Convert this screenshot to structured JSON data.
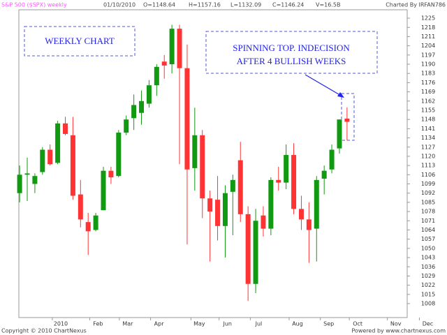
{
  "chart_data": {
    "type": "candlestick",
    "header": {
      "symbol": "S&P 500 ($SPX) weekly",
      "date": "01/10/2010",
      "open": "O=1148.64",
      "high": "H=1157.16",
      "low": "L=1132.09",
      "close": "C=1146.24",
      "volume": "V=16.5B",
      "credit": "Charted By IRFAN786"
    },
    "footer": {
      "copyright": "Copyright © 2010 ChartNexus",
      "powered": "Powered by www.chartnexus.com"
    },
    "annotations": {
      "box1": "WEEKLY CHART",
      "box2_line1": "SPINNING TOP. INDECISION",
      "box2_line2": "AFTER 4 BULLISH WEEKS"
    },
    "up_color": "#119911",
    "down_color": "#ff3333",
    "x": [
      0,
      1,
      2,
      3,
      4,
      5,
      6,
      7,
      8,
      9,
      10,
      11,
      12,
      13,
      14,
      15,
      16,
      17,
      18,
      19,
      20,
      21,
      22,
      23,
      24,
      25,
      26,
      27,
      28,
      29,
      30,
      31,
      32,
      33,
      34,
      35,
      36,
      37,
      38,
      39,
      40,
      41,
      42,
      43
    ],
    "open": [
      1092,
      1106,
      1099,
      1108,
      1125,
      1115,
      1145,
      1136,
      1091,
      1070,
      1064,
      1079,
      1109,
      1105,
      1138,
      1149,
      1153,
      1160,
      1174,
      1192,
      1190,
      1217,
      1187,
      1111,
      1136,
      1088,
      1087,
      1067,
      1093,
      1117,
      1076,
      1023,
      1075,
      1065,
      1102,
      1100,
      1121,
      1080,
      1072,
      1065,
      1103,
      1110,
      1126,
      1148.64
    ],
    "high": [
      1113,
      1119,
      1107,
      1127,
      1129,
      1147,
      1150,
      1150,
      1102,
      1077,
      1077,
      1112,
      1112,
      1140,
      1151,
      1167,
      1170,
      1178,
      1190,
      1197,
      1220,
      1220,
      1205,
      1157,
      1140,
      1094,
      1105,
      1098,
      1106,
      1131,
      1082,
      1080,
      1082,
      1104,
      1112,
      1129,
      1130,
      1090,
      1085,
      1105,
      1113,
      1129,
      1148,
      1157.16
    ],
    "low": [
      1085,
      1086,
      1092,
      1106,
      1113,
      1114,
      1136,
      1087,
      1066,
      1045,
      1063,
      1079,
      1099,
      1104,
      1136,
      1140,
      1144,
      1157,
      1166,
      1179,
      1183,
      1114,
      1053,
      1094,
      1073,
      1040,
      1056,
      1043,
      1060,
      1070,
      1010,
      1016,
      1059,
      1060,
      1094,
      1095,
      1076,
      1064,
      1039,
      1040,
      1091,
      1107,
      1122,
      1132.09
    ],
    "close": [
      1106,
      1107,
      1105,
      1125,
      1114,
      1145,
      1137,
      1090,
      1072,
      1063,
      1075,
      1109,
      1104,
      1138,
      1148,
      1159,
      1162,
      1174,
      1188,
      1189,
      1217,
      1187,
      1110,
      1136,
      1088,
      1078,
      1067,
      1092,
      1102,
      1076,
      1023,
      1071,
      1065,
      1102,
      1100,
      1121,
      1080,
      1072,
      1064,
      1102,
      1109,
      1125,
      1148,
      1146.24
    ],
    "xlim": [
      -0.1,
      50.9
    ],
    "xticks": [
      {
        "value": 5.4,
        "label": "2010"
      },
      {
        "value": 10.3,
        "label": "Feb"
      },
      {
        "value": 14.2,
        "label": "Mar"
      },
      {
        "value": 18.3,
        "label": "Apr"
      },
      {
        "value": 23.6,
        "label": "May"
      },
      {
        "value": 27.3,
        "label": "Jun"
      },
      {
        "value": 31.4,
        "label": "Jul"
      },
      {
        "value": 36.5,
        "label": "Aug"
      },
      {
        "value": 40.6,
        "label": "Sep"
      },
      {
        "value": 44.4,
        "label": "Oct"
      },
      {
        "value": 49.4,
        "label": "Nov"
      },
      {
        "value": 53.6,
        "label": "Dec"
      }
    ],
    "ylim": [
      997.4,
      1231.4
    ],
    "yticks": [
      1008,
      1015,
      1022,
      1029,
      1036,
      1043,
      1050,
      1057,
      1064,
      1071,
      1078,
      1085,
      1092,
      1099,
      1106,
      1113,
      1120,
      1127,
      1134,
      1141,
      1148,
      1155,
      1162,
      1169,
      1176,
      1183,
      1190,
      1197,
      1204,
      1211,
      1218,
      1225
    ]
  }
}
